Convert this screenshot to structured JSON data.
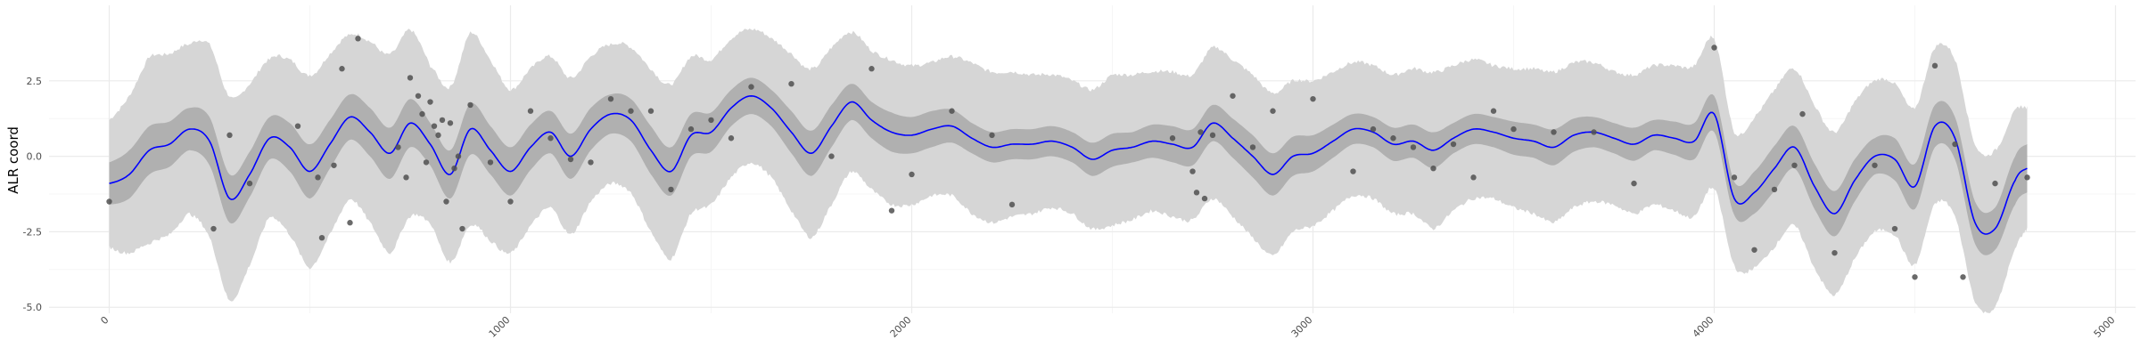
{
  "chart_data": {
    "type": "line",
    "title": "",
    "xlabel": "",
    "ylabel": "ALR coord",
    "xlim": [
      -150,
      5050
    ],
    "ylim": [
      -5.2,
      5.0
    ],
    "x_ticks": [
      0,
      1000,
      2000,
      3000,
      4000,
      5000
    ],
    "x_tick_labels": [
      "0",
      "1000",
      "2000",
      "3000",
      "4000",
      "5000"
    ],
    "y_ticks": [
      -5.0,
      -2.5,
      0.0,
      2.5
    ],
    "y_tick_labels": [
      "-5.0",
      "-2.5",
      "0.0",
      "2.5"
    ],
    "grid": true,
    "legend": "none",
    "colors": {
      "mean_line": "#0000ff",
      "inner_band": "#b0b0b0",
      "outer_band": "#d6d6d6",
      "points": "#505050"
    },
    "mean": {
      "x": [
        0,
        50,
        100,
        150,
        200,
        250,
        300,
        350,
        400,
        450,
        500,
        550,
        600,
        650,
        700,
        750,
        800,
        850,
        900,
        950,
        1000,
        1050,
        1100,
        1150,
        1200,
        1250,
        1300,
        1350,
        1400,
        1450,
        1500,
        1550,
        1600,
        1650,
        1700,
        1750,
        1800,
        1850,
        1900,
        1950,
        2000,
        2050,
        2100,
        2150,
        2200,
        2250,
        2300,
        2350,
        2400,
        2450,
        2500,
        2550,
        2600,
        2650,
        2700,
        2750,
        2800,
        2850,
        2900,
        2950,
        3000,
        3050,
        3100,
        3150,
        3200,
        3250,
        3300,
        3350,
        3400,
        3450,
        3500,
        3550,
        3600,
        3650,
        3700,
        3750,
        3800,
        3850,
        3900,
        3950,
        4000,
        4050,
        4100,
        4150,
        4200,
        4250,
        4300,
        4350,
        4400,
        4450,
        4500,
        4550,
        4600,
        4650,
        4700,
        4750,
        4780
      ],
      "y": [
        -0.9,
        -0.6,
        0.2,
        0.4,
        0.9,
        0.5,
        -1.4,
        -0.6,
        0.6,
        0.3,
        -0.5,
        0.4,
        1.3,
        0.8,
        0.1,
        1.1,
        0.4,
        -0.6,
        0.9,
        0.2,
        -0.5,
        0.3,
        0.8,
        0.0,
        0.9,
        1.4,
        1.2,
        0.2,
        -0.5,
        0.7,
        0.8,
        1.6,
        2.0,
        1.6,
        0.8,
        0.1,
        1.0,
        1.8,
        1.2,
        0.8,
        0.7,
        0.9,
        1.0,
        0.6,
        0.3,
        0.4,
        0.4,
        0.5,
        0.3,
        -0.1,
        0.2,
        0.3,
        0.5,
        0.4,
        0.3,
        1.1,
        0.6,
        0.0,
        -0.6,
        0.0,
        0.1,
        0.5,
        0.9,
        0.8,
        0.4,
        0.5,
        0.2,
        0.6,
        0.9,
        0.8,
        0.6,
        0.5,
        0.3,
        0.7,
        0.8,
        0.6,
        0.4,
        0.7,
        0.6,
        0.5,
        1.4,
        -1.4,
        -1.2,
        -0.4,
        0.3,
        -1.0,
        -1.9,
        -0.8,
        0.0,
        -0.1,
        -1.0,
        1.0,
        0.6,
        -2.2,
        -2.4,
        -0.8,
        -0.4
      ]
    },
    "inner_band_halfwidth": [
      0.7,
      0.8,
      0.8,
      0.75,
      0.7,
      0.8,
      0.8,
      0.75,
      0.7,
      0.8,
      0.9,
      0.8,
      0.75,
      0.8,
      0.85,
      0.8,
      0.7,
      0.8,
      0.85,
      0.8,
      0.8,
      0.75,
      0.7,
      0.75,
      0.7,
      0.65,
      0.7,
      0.8,
      0.8,
      0.7,
      0.65,
      0.6,
      0.6,
      0.6,
      0.7,
      0.75,
      0.7,
      0.6,
      0.6,
      0.65,
      0.6,
      0.6,
      0.55,
      0.5,
      0.5,
      0.5,
      0.5,
      0.5,
      0.5,
      0.55,
      0.55,
      0.5,
      0.55,
      0.6,
      0.6,
      0.6,
      0.65,
      0.7,
      0.7,
      0.65,
      0.6,
      0.55,
      0.5,
      0.5,
      0.55,
      0.55,
      0.6,
      0.5,
      0.5,
      0.5,
      0.55,
      0.55,
      0.6,
      0.55,
      0.5,
      0.5,
      0.55,
      0.5,
      0.55,
      0.6,
      0.6,
      0.55,
      0.7,
      0.75,
      0.7,
      0.75,
      0.75,
      0.7,
      0.6,
      0.7,
      0.75,
      0.7,
      0.7,
      0.7,
      0.7,
      0.8,
      0.8
    ],
    "outer_band_halfwidth": [
      2.1,
      2.6,
      3.1,
      3.0,
      2.8,
      3.2,
      3.4,
      3.0,
      2.6,
      2.9,
      3.2,
      3.0,
      2.7,
      3.0,
      3.3,
      3.1,
      2.6,
      2.9,
      3.2,
      3.0,
      2.7,
      2.6,
      2.5,
      2.6,
      2.4,
      2.3,
      2.4,
      2.7,
      2.9,
      2.6,
      2.4,
      2.3,
      2.2,
      2.3,
      2.6,
      2.8,
      2.6,
      2.3,
      2.3,
      2.4,
      2.3,
      2.2,
      2.3,
      2.5,
      2.5,
      2.4,
      2.3,
      2.2,
      2.2,
      2.3,
      2.5,
      2.4,
      2.3,
      2.4,
      2.4,
      2.5,
      2.6,
      2.7,
      2.7,
      2.5,
      2.4,
      2.3,
      2.2,
      2.2,
      2.3,
      2.4,
      2.6,
      2.4,
      2.3,
      2.2,
      2.3,
      2.4,
      2.5,
      2.4,
      2.3,
      2.2,
      2.3,
      2.3,
      2.4,
      2.5,
      2.5,
      2.2,
      2.5,
      2.6,
      2.6,
      2.7,
      2.7,
      2.6,
      2.5,
      2.5,
      2.6,
      2.6,
      2.6,
      2.6,
      2.6,
      2.3,
      2.0
    ],
    "points": {
      "x": [
        0,
        260,
        300,
        350,
        470,
        520,
        530,
        560,
        580,
        600,
        620,
        720,
        740,
        750,
        770,
        780,
        790,
        800,
        810,
        820,
        830,
        840,
        850,
        860,
        870,
        880,
        900,
        950,
        1000,
        1050,
        1100,
        1150,
        1200,
        1250,
        1300,
        1350,
        1400,
        1450,
        1500,
        1550,
        1600,
        1700,
        1800,
        1900,
        1950,
        2000,
        2100,
        2200,
        2250,
        2650,
        2700,
        2710,
        2720,
        2730,
        2750,
        2800,
        2850,
        2900,
        3000,
        3100,
        3150,
        3200,
        3250,
        3300,
        3350,
        3400,
        3450,
        3500,
        3600,
        3700,
        3800,
        4000,
        4050,
        4100,
        4150,
        4200,
        4220,
        4300,
        4400,
        4450,
        4500,
        4550,
        4600,
        4620,
        4700,
        4780
      ],
      "y": [
        -1.5,
        -2.4,
        0.7,
        -0.9,
        1.0,
        -0.7,
        -2.7,
        -0.3,
        2.9,
        -2.2,
        3.9,
        0.3,
        -0.7,
        2.6,
        2.0,
        1.4,
        -0.2,
        1.8,
        1.0,
        0.7,
        1.2,
        -1.5,
        1.1,
        -0.4,
        0.0,
        -2.4,
        1.7,
        -0.2,
        -1.5,
        1.5,
        0.6,
        -0.1,
        -0.2,
        1.9,
        1.5,
        1.5,
        -1.1,
        0.9,
        1.2,
        0.6,
        2.3,
        2.4,
        0.0,
        2.9,
        -1.8,
        -0.6,
        1.5,
        0.7,
        -1.6,
        0.6,
        -0.5,
        -1.2,
        0.8,
        -1.4,
        0.7,
        2.0,
        0.3,
        1.5,
        1.9,
        -0.5,
        0.9,
        0.6,
        0.3,
        -0.4,
        0.4,
        -0.7,
        1.5,
        0.9,
        0.8,
        0.8,
        -0.9,
        3.6,
        -0.7,
        -3.1,
        -1.1,
        -0.3,
        1.4,
        -3.2,
        -0.3,
        -2.4,
        -4.0,
        3.0,
        0.4,
        -4.0,
        -0.9,
        -0.7
      ]
    }
  }
}
